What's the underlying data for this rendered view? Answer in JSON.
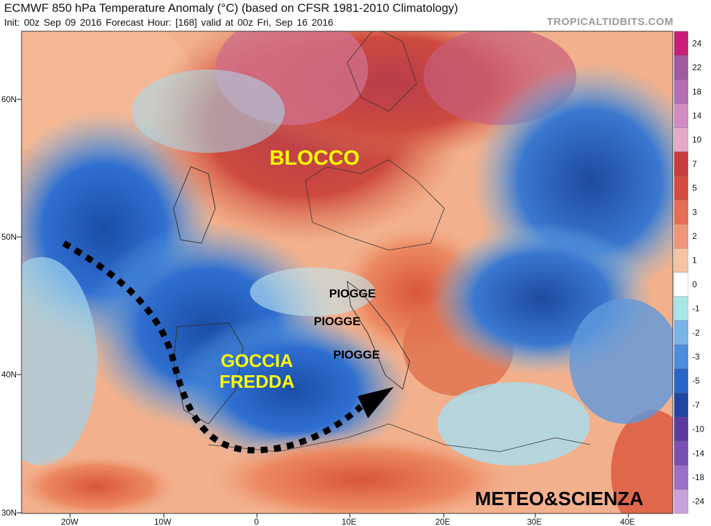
{
  "header": {
    "title": "ECMWF 850 hPa Temperature Anomaly (°C) (based on CFSR 1981-2010 Climatology)",
    "subtitle": "Init: 00z Sep 09 2016   Forecast Hour: [168]   valid at 00z Fri, Sep 16 2016",
    "credit": "TROPICALTIDBITS.COM"
  },
  "map": {
    "lat_ticks": [
      "60N",
      "50N",
      "40N",
      "30N"
    ],
    "lon_ticks": [
      "20W",
      "10W",
      "0",
      "10E",
      "20E",
      "30E",
      "40E"
    ],
    "annotations": {
      "blocco": "BLOCCO",
      "goccia": "GOCCIA",
      "fredda": "FREDDA",
      "piogge_1": "PIOGGE",
      "piogge_2": "PIOGGE",
      "piogge_3": "PIOGGE",
      "watermark": "METEO&SCIENZA"
    }
  },
  "colorbar": {
    "labels": [
      "24",
      "22",
      "18",
      "14",
      "10",
      "7",
      "5",
      "3",
      "2",
      "1",
      "0",
      "-1",
      "-2",
      "-3",
      "-5",
      "-7",
      "-10",
      "-14",
      "-18",
      "-24"
    ],
    "colors": [
      "#c81e78",
      "#a05aa0",
      "#b46eb4",
      "#d28cc3",
      "#e6aac8",
      "#c83c3c",
      "#d74b41",
      "#e66e55",
      "#f09678",
      "#f7c3a5",
      "#ffffff",
      "#a8e6ea",
      "#78b4e8",
      "#4c8cdc",
      "#2864c8",
      "#1e46a0",
      "#5a3ca0",
      "#7850b4",
      "#9b6ec8",
      "#c8a0dc"
    ]
  }
}
